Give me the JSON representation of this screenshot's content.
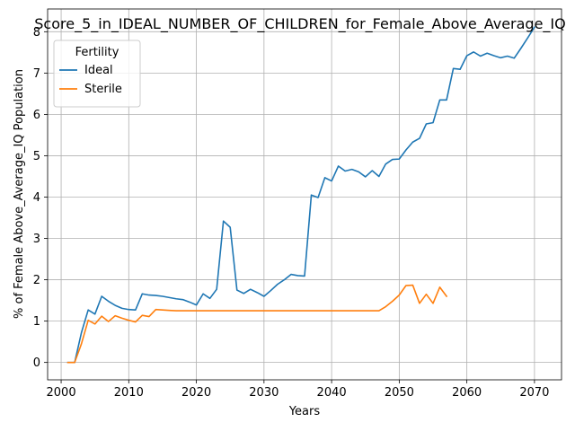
{
  "chart_data": {
    "type": "line",
    "title": "Score_5_in_IDEAL_NUMBER_OF_CHILDREN_for_Female_Above_Average_IQ",
    "xlabel": "Years",
    "ylabel": "% of Female Above_Average_IQ Population",
    "xlim": [
      1998,
      2074
    ],
    "ylim": [
      -0.42,
      8.55
    ],
    "xticks": [
      2000,
      2010,
      2020,
      2030,
      2040,
      2050,
      2060,
      2070
    ],
    "yticks": [
      0,
      1,
      2,
      3,
      4,
      5,
      6,
      7,
      8
    ],
    "grid": true,
    "legend": {
      "title": "Fertility",
      "placement": "top-left"
    },
    "series": [
      {
        "name": "Ideal",
        "color": "#1f77b4",
        "x": [
          2001,
          2002,
          2003,
          2004,
          2005,
          2006,
          2007,
          2008,
          2009,
          2010,
          2011,
          2012,
          2013,
          2014,
          2015,
          2016,
          2017,
          2018,
          2019,
          2020,
          2021,
          2022,
          2023,
          2024,
          2025,
          2026,
          2027,
          2028,
          2029,
          2030,
          2031,
          2032,
          2033,
          2034,
          2035,
          2036,
          2037,
          2038,
          2039,
          2040,
          2041,
          2042,
          2043,
          2044,
          2045,
          2046,
          2047,
          2048,
          2049,
          2050,
          2051,
          2052,
          2053,
          2054,
          2055,
          2056,
          2057,
          2058,
          2059,
          2060,
          2061,
          2062,
          2063,
          2064,
          2065,
          2066,
          2067,
          2068,
          2069,
          2070
        ],
        "y": [
          0,
          0,
          0.72,
          1.27,
          1.17,
          1.6,
          1.48,
          1.38,
          1.31,
          1.28,
          1.27,
          1.66,
          1.63,
          1.62,
          1.6,
          1.57,
          1.54,
          1.52,
          1.46,
          1.39,
          1.66,
          1.55,
          1.77,
          3.42,
          3.27,
          1.75,
          1.67,
          1.77,
          1.69,
          1.6,
          1.74,
          1.89,
          2.0,
          2.13,
          2.1,
          2.09,
          4.05,
          3.99,
          4.47,
          4.39,
          4.75,
          4.63,
          4.67,
          4.61,
          4.49,
          4.64,
          4.5,
          4.8,
          4.91,
          4.92,
          5.14,
          5.33,
          5.42,
          5.77,
          5.8,
          6.35,
          6.35,
          7.11,
          7.09,
          7.42,
          7.51,
          7.41,
          7.48,
          7.42,
          7.37,
          7.41,
          7.36,
          7.6,
          7.85,
          8.11
        ]
      },
      {
        "name": "Sterile",
        "color": "#ff7f0e",
        "x": [
          2001,
          2002,
          2003,
          2004,
          2005,
          2006,
          2007,
          2008,
          2009,
          2010,
          2011,
          2012,
          2013,
          2014,
          2015,
          2016,
          2017,
          2018,
          2019,
          2020,
          2025,
          2030,
          2035,
          2040,
          2045,
          2047,
          2048,
          2049,
          2050,
          2051,
          2052,
          2053,
          2054,
          2055,
          2056,
          2057
        ],
        "y": [
          0,
          0,
          0.45,
          1.02,
          0.93,
          1.12,
          0.99,
          1.13,
          1.07,
          1.02,
          0.98,
          1.14,
          1.11,
          1.28,
          1.27,
          1.26,
          1.25,
          1.25,
          1.25,
          1.25,
          1.25,
          1.25,
          1.25,
          1.25,
          1.25,
          1.25,
          1.35,
          1.48,
          1.63,
          1.86,
          1.87,
          1.43,
          1.65,
          1.43,
          1.82,
          1.6
        ]
      }
    ]
  }
}
